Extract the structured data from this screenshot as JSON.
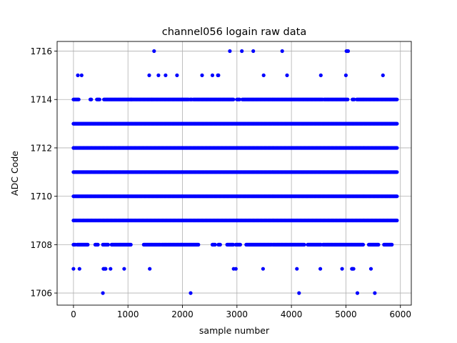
{
  "chart_data": {
    "type": "scatter",
    "title": "channel056 logain raw data",
    "xlabel": "sample number",
    "ylabel": "ADC Code",
    "xlim": [
      -300,
      6200
    ],
    "ylim": [
      1705.5,
      1716.4
    ],
    "xticks": [
      0,
      1000,
      2000,
      3000,
      4000,
      5000,
      6000
    ],
    "yticks": [
      1706,
      1708,
      1710,
      1712,
      1714,
      1716
    ],
    "grid": true,
    "marker_color": "#0000ff",
    "series": [
      {
        "x_range": [
          0,
          5940
        ],
        "dense_levels": [
          1709,
          1710,
          1711,
          1712,
          1713
        ],
        "sparse_levels": [
          {
            "y": 1714,
            "x_segments": [
              [
                0,
                100
              ],
              [
                310,
                330
              ],
              [
                430,
                480
              ],
              [
                560,
                1060
              ],
              [
                1060,
                1440
              ],
              [
                1440,
                2120
              ],
              [
                2140,
                2180
              ],
              [
                2200,
                2940
              ],
              [
                3000,
                3060
              ],
              [
                3100,
                4580
              ],
              [
                4600,
                5040
              ],
              [
                5120,
                5160
              ],
              [
                5200,
                5940
              ]
            ]
          },
          {
            "y": 1708,
            "x_segments": [
              [
                0,
                40
              ],
              [
                70,
                270
              ],
              [
                400,
                460
              ],
              [
                540,
                640
              ],
              [
                700,
                1060
              ],
              [
                1290,
                1600
              ],
              [
                1620,
                2300
              ],
              [
                2550,
                2600
              ],
              [
                2660,
                2700
              ],
              [
                2820,
                2940
              ],
              [
                2980,
                3060
              ],
              [
                3170,
                3640
              ],
              [
                3660,
                4240
              ],
              [
                4300,
                4540
              ],
              [
                4580,
                5320
              ],
              [
                5420,
                5600
              ],
              [
                5700,
                5850
              ]
            ]
          },
          {
            "y": 1715,
            "x": [
              80,
              150,
              1390,
              1560,
              1690,
              1900,
              2360,
              2550,
              2650,
              2660,
              3490,
              3920,
              4540,
              5000,
              5680
            ]
          },
          {
            "y": 1716,
            "x": [
              1480,
              2870,
              3090,
              3300,
              3830,
              5010,
              5030,
              5040
            ]
          },
          {
            "y": 1707,
            "x": [
              0,
              110,
              550,
              560,
              580,
              590,
              680,
              930,
              1400,
              2940,
              2980,
              3480,
              4100,
              4530,
              4930,
              5110,
              5120,
              5140,
              5460
            ]
          },
          {
            "y": 1706,
            "x": [
              540,
              2150,
              4140,
              5210,
              5530
            ]
          }
        ]
      }
    ]
  }
}
